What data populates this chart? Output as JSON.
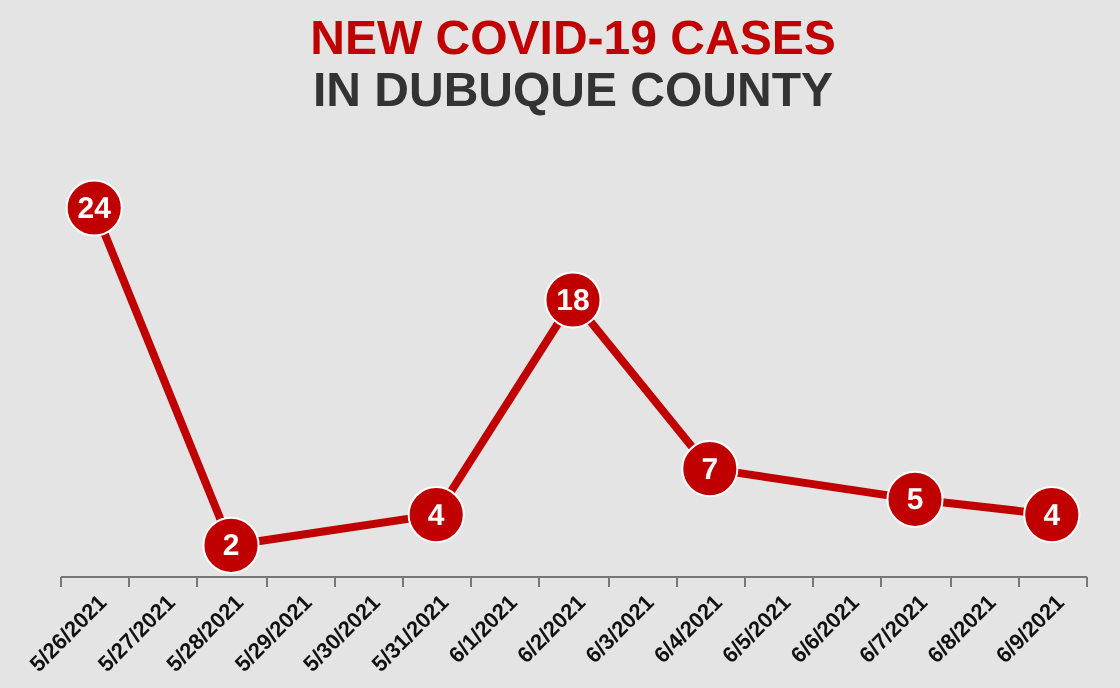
{
  "chart_data": {
    "type": "line",
    "title": "NEW COVID-19 CASES",
    "subtitle": "IN DUBUQUE COUNTY",
    "categories": [
      "5/26/2021",
      "5/27/2021",
      "5/28/2021",
      "5/29/2021",
      "5/30/2021",
      "5/31/2021",
      "6/1/2021",
      "6/2/2021",
      "6/3/2021",
      "6/4/2021",
      "6/5/2021",
      "6/6/2021",
      "6/7/2021",
      "6/8/2021",
      "6/9/2021"
    ],
    "series": [
      {
        "color": "#c00000",
        "values": [
          24,
          null,
          2,
          null,
          null,
          4,
          null,
          18,
          null,
          7,
          null,
          null,
          5,
          null,
          4
        ]
      }
    ],
    "marker": "circle",
    "data_labels": true,
    "tick_labels": "x"
  }
}
